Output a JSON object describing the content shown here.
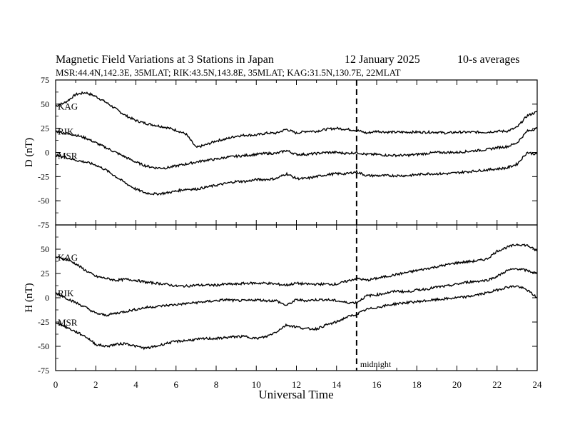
{
  "header": {
    "title": "Magnetic Field Variations at 3 Stations in Japan",
    "date": "12 January 2025",
    "averaging": "10-s averages",
    "stations_line": "MSR:44.4N,142.3E, 35MLAT;  RIK:43.5N,143.8E, 35MLAT;  KAG:31.5N,130.7E, 22MLAT"
  },
  "annotation": {
    "midnight_label": "midnight",
    "midnight_ut": 15
  },
  "chart_data": [
    {
      "type": "line",
      "component": "D",
      "ylabel": "D (nT)",
      "xlabel": "Universal Time",
      "xlim": [
        0,
        24
      ],
      "ylim": [
        -75,
        75
      ],
      "x_ticks": [
        "0",
        "2",
        "4",
        "6",
        "8",
        "10",
        "12",
        "14",
        "16",
        "18",
        "20",
        "22",
        "24"
      ],
      "y_ticks": [
        "75",
        "50",
        "25",
        "0",
        "-25",
        "-50",
        "-75"
      ],
      "y_tick_values": [
        75,
        50,
        25,
        0,
        -25,
        -50,
        -75
      ],
      "x": [
        0,
        0.5,
        1,
        1.5,
        2,
        2.5,
        3,
        3.5,
        4,
        4.5,
        5,
        5.5,
        6,
        6.5,
        7,
        7.5,
        8,
        8.5,
        9,
        9.5,
        10,
        10.5,
        11,
        11.5,
        12,
        12.5,
        13,
        13.5,
        14,
        14.5,
        15,
        15.5,
        16,
        16.5,
        17,
        17.5,
        18,
        18.5,
        19,
        19.5,
        20,
        20.5,
        21,
        21.5,
        22,
        22.5,
        23,
        23.5,
        24
      ],
      "series": [
        {
          "name": "KAG",
          "values": [
            48,
            52,
            60,
            62,
            58,
            52,
            45,
            38,
            33,
            30,
            28,
            26,
            23,
            19,
            5,
            8,
            12,
            14,
            17,
            18,
            18,
            20,
            20,
            24,
            20,
            22,
            22,
            24,
            25,
            24,
            23,
            20,
            22,
            21,
            21,
            21,
            21,
            21,
            21,
            20,
            21,
            21,
            21,
            21,
            22,
            22,
            26,
            38,
            42
          ]
        },
        {
          "name": "RIK",
          "values": [
            22,
            20,
            18,
            15,
            10,
            5,
            0,
            -5,
            -10,
            -14,
            -16,
            -16,
            -14,
            -12,
            -10,
            -8,
            -7,
            -5,
            -4,
            -3,
            -2,
            -1,
            -1,
            2,
            -2,
            -2,
            -1,
            0,
            0,
            -1,
            0,
            -2,
            -2,
            -3,
            -3,
            -3,
            -2,
            -1,
            0,
            0,
            0,
            1,
            2,
            3,
            5,
            6,
            10,
            22,
            25
          ]
        },
        {
          "name": "MSR",
          "values": [
            -3,
            -5,
            -8,
            -10,
            -13,
            -18,
            -25,
            -32,
            -38,
            -42,
            -43,
            -42,
            -40,
            -38,
            -38,
            -36,
            -34,
            -32,
            -30,
            -30,
            -28,
            -28,
            -27,
            -22,
            -27,
            -27,
            -25,
            -23,
            -22,
            -22,
            -20,
            -24,
            -24,
            -24,
            -24,
            -24,
            -23,
            -22,
            -22,
            -22,
            -21,
            -20,
            -19,
            -18,
            -17,
            -16,
            -12,
            0,
            -2
          ]
        }
      ]
    },
    {
      "type": "line",
      "component": "H",
      "ylabel": "H (nT)",
      "xlabel": "Universal Time",
      "xlim": [
        0,
        24
      ],
      "ylim": [
        -75,
        75
      ],
      "x_ticks": [
        "0",
        "2",
        "4",
        "6",
        "8",
        "10",
        "12",
        "14",
        "16",
        "18",
        "20",
        "22",
        "24"
      ],
      "y_ticks": [
        "50",
        "25",
        "0",
        "-25",
        "-50",
        "-75"
      ],
      "y_tick_values": [
        50,
        25,
        0,
        -25,
        -50,
        -75
      ],
      "x": [
        0,
        0.5,
        1,
        1.5,
        2,
        2.5,
        3,
        3.5,
        4,
        4.5,
        5,
        5.5,
        6,
        6.5,
        7,
        7.5,
        8,
        8.5,
        9,
        9.5,
        10,
        10.5,
        11,
        11.5,
        12,
        12.5,
        13,
        13.5,
        14,
        14.5,
        15,
        15.5,
        16,
        16.5,
        17,
        17.5,
        18,
        18.5,
        19,
        19.5,
        20,
        20.5,
        21,
        21.5,
        22,
        22.5,
        23,
        23.5,
        24
      ],
      "series": [
        {
          "name": "KAG",
          "values": [
            42,
            40,
            35,
            28,
            22,
            20,
            18,
            19,
            18,
            16,
            15,
            14,
            12,
            12,
            13,
            13,
            13,
            14,
            14,
            15,
            15,
            15,
            14,
            13,
            15,
            14,
            14,
            14,
            14,
            17,
            20,
            18,
            20,
            22,
            24,
            26,
            28,
            30,
            32,
            34,
            36,
            37,
            38,
            40,
            48,
            52,
            55,
            54,
            48
          ]
        },
        {
          "name": "RIK",
          "values": [
            5,
            0,
            -5,
            -10,
            -16,
            -18,
            -16,
            -14,
            -12,
            -10,
            -9,
            -8,
            -7,
            -6,
            -5,
            -4,
            -3,
            -2,
            -3,
            -3,
            -2,
            -3,
            -3,
            -8,
            -2,
            -3,
            -2,
            -2,
            -3,
            -5,
            -5,
            2,
            3,
            5,
            7,
            6,
            8,
            9,
            11,
            12,
            14,
            16,
            17,
            18,
            22,
            28,
            30,
            28,
            25
          ]
        },
        {
          "name": "MSR",
          "values": [
            -25,
            -30,
            -35,
            -40,
            -48,
            -50,
            -48,
            -47,
            -50,
            -52,
            -50,
            -47,
            -45,
            -44,
            -43,
            -42,
            -42,
            -41,
            -40,
            -40,
            -42,
            -40,
            -35,
            -28,
            -30,
            -32,
            -32,
            -28,
            -25,
            -20,
            -17,
            -12,
            -10,
            -8,
            -6,
            -5,
            -4,
            -3,
            -2,
            -1,
            0,
            1,
            3,
            5,
            8,
            11,
            12,
            8,
            0
          ]
        }
      ]
    }
  ]
}
